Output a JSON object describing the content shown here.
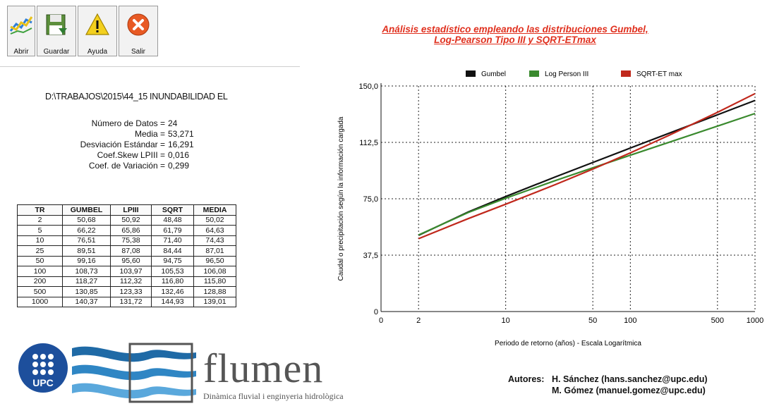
{
  "toolbar": {
    "open_label": "Abrir",
    "save_label": "Guardar",
    "help_label": "Ayuda",
    "exit_label": "Salir"
  },
  "info": {
    "file_path": "D:\\TRABAJOS\\2015\\44_15 INUNDABILIDAD EL",
    "stats": [
      {
        "label": "Número de Datos =",
        "value": "24"
      },
      {
        "label": "Media =",
        "value": "53,271"
      },
      {
        "label": "Desviación Estándar =",
        "value": "16,291"
      },
      {
        "label": "Coef.Skew LPIII =",
        "value": "0,016"
      },
      {
        "label": "Coef. de Variación =",
        "value": "0,299"
      }
    ]
  },
  "table": {
    "headers": [
      "TR",
      "GUMBEL",
      "LPIII",
      "SQRT",
      "MEDIA"
    ],
    "rows": [
      [
        "2",
        "50,68",
        "50,92",
        "48,48",
        "50,02"
      ],
      [
        "5",
        "66,22",
        "65,86",
        "61,79",
        "64,63"
      ],
      [
        "10",
        "76,51",
        "75,38",
        "71,40",
        "74,43"
      ],
      [
        "25",
        "89,51",
        "87,08",
        "84,44",
        "87,01"
      ],
      [
        "50",
        "99,16",
        "95,60",
        "94,75",
        "96,50"
      ],
      [
        "100",
        "108,73",
        "103,97",
        "105,53",
        "106,08"
      ],
      [
        "200",
        "118,27",
        "112,32",
        "116,80",
        "115,80"
      ],
      [
        "500",
        "130,85",
        "123,33",
        "132,46",
        "128,88"
      ],
      [
        "1000",
        "140,37",
        "131,72",
        "144,93",
        "139,01"
      ]
    ]
  },
  "chart_data": {
    "type": "line",
    "title_line1": "Análisis estadístico empleando las distribuciones Gumbel,",
    "title_line2": "Log-Pearson Tipo III  y SQRT-ETmax",
    "xlabel": "Periodo de retorno (años) - Escala Logarítmica",
    "ylabel": "Caudal o precipitación según la información cargada",
    "x_scale": "log",
    "xlim": [
      1,
      1000
    ],
    "ylim": [
      0,
      150
    ],
    "y_ticks": [
      "0",
      "37,5",
      "75,0",
      "112,5",
      "150,0"
    ],
    "y_tick_values": [
      0,
      37.5,
      75,
      112.5,
      150
    ],
    "x_ticks": [
      "0",
      "2",
      "10",
      "50",
      "100",
      "500",
      "1000"
    ],
    "x_tick_values": [
      1,
      2,
      10,
      50,
      100,
      500,
      1000
    ],
    "grid": true,
    "legend_position": "top",
    "x": [
      2,
      5,
      10,
      25,
      50,
      100,
      200,
      500,
      1000
    ],
    "series": [
      {
        "name": "Gumbel",
        "color": "#111111",
        "values": [
          50.68,
          66.22,
          76.51,
          89.51,
          99.16,
          108.73,
          118.27,
          130.85,
          140.37
        ]
      },
      {
        "name": "Log Person III",
        "color": "#3a8a2e",
        "values": [
          50.92,
          65.86,
          75.38,
          87.08,
          95.6,
          103.97,
          112.32,
          123.33,
          131.72
        ]
      },
      {
        "name": "SQRT-ET max",
        "color": "#c0281c",
        "values": [
          48.48,
          61.79,
          71.4,
          84.44,
          94.75,
          105.53,
          116.8,
          132.46,
          144.93
        ]
      }
    ]
  },
  "footer": {
    "upc_text": "UPC",
    "flumen_name": "flumen",
    "flumen_subtitle": "Dinàmica fluvial i enginyeria hidrològica",
    "authors_label": "Autores:",
    "authors": [
      "H. Sánchez  (hans.sanchez@upc.edu)",
      "M. Gómez (manuel.gomez@upc.edu)"
    ]
  }
}
